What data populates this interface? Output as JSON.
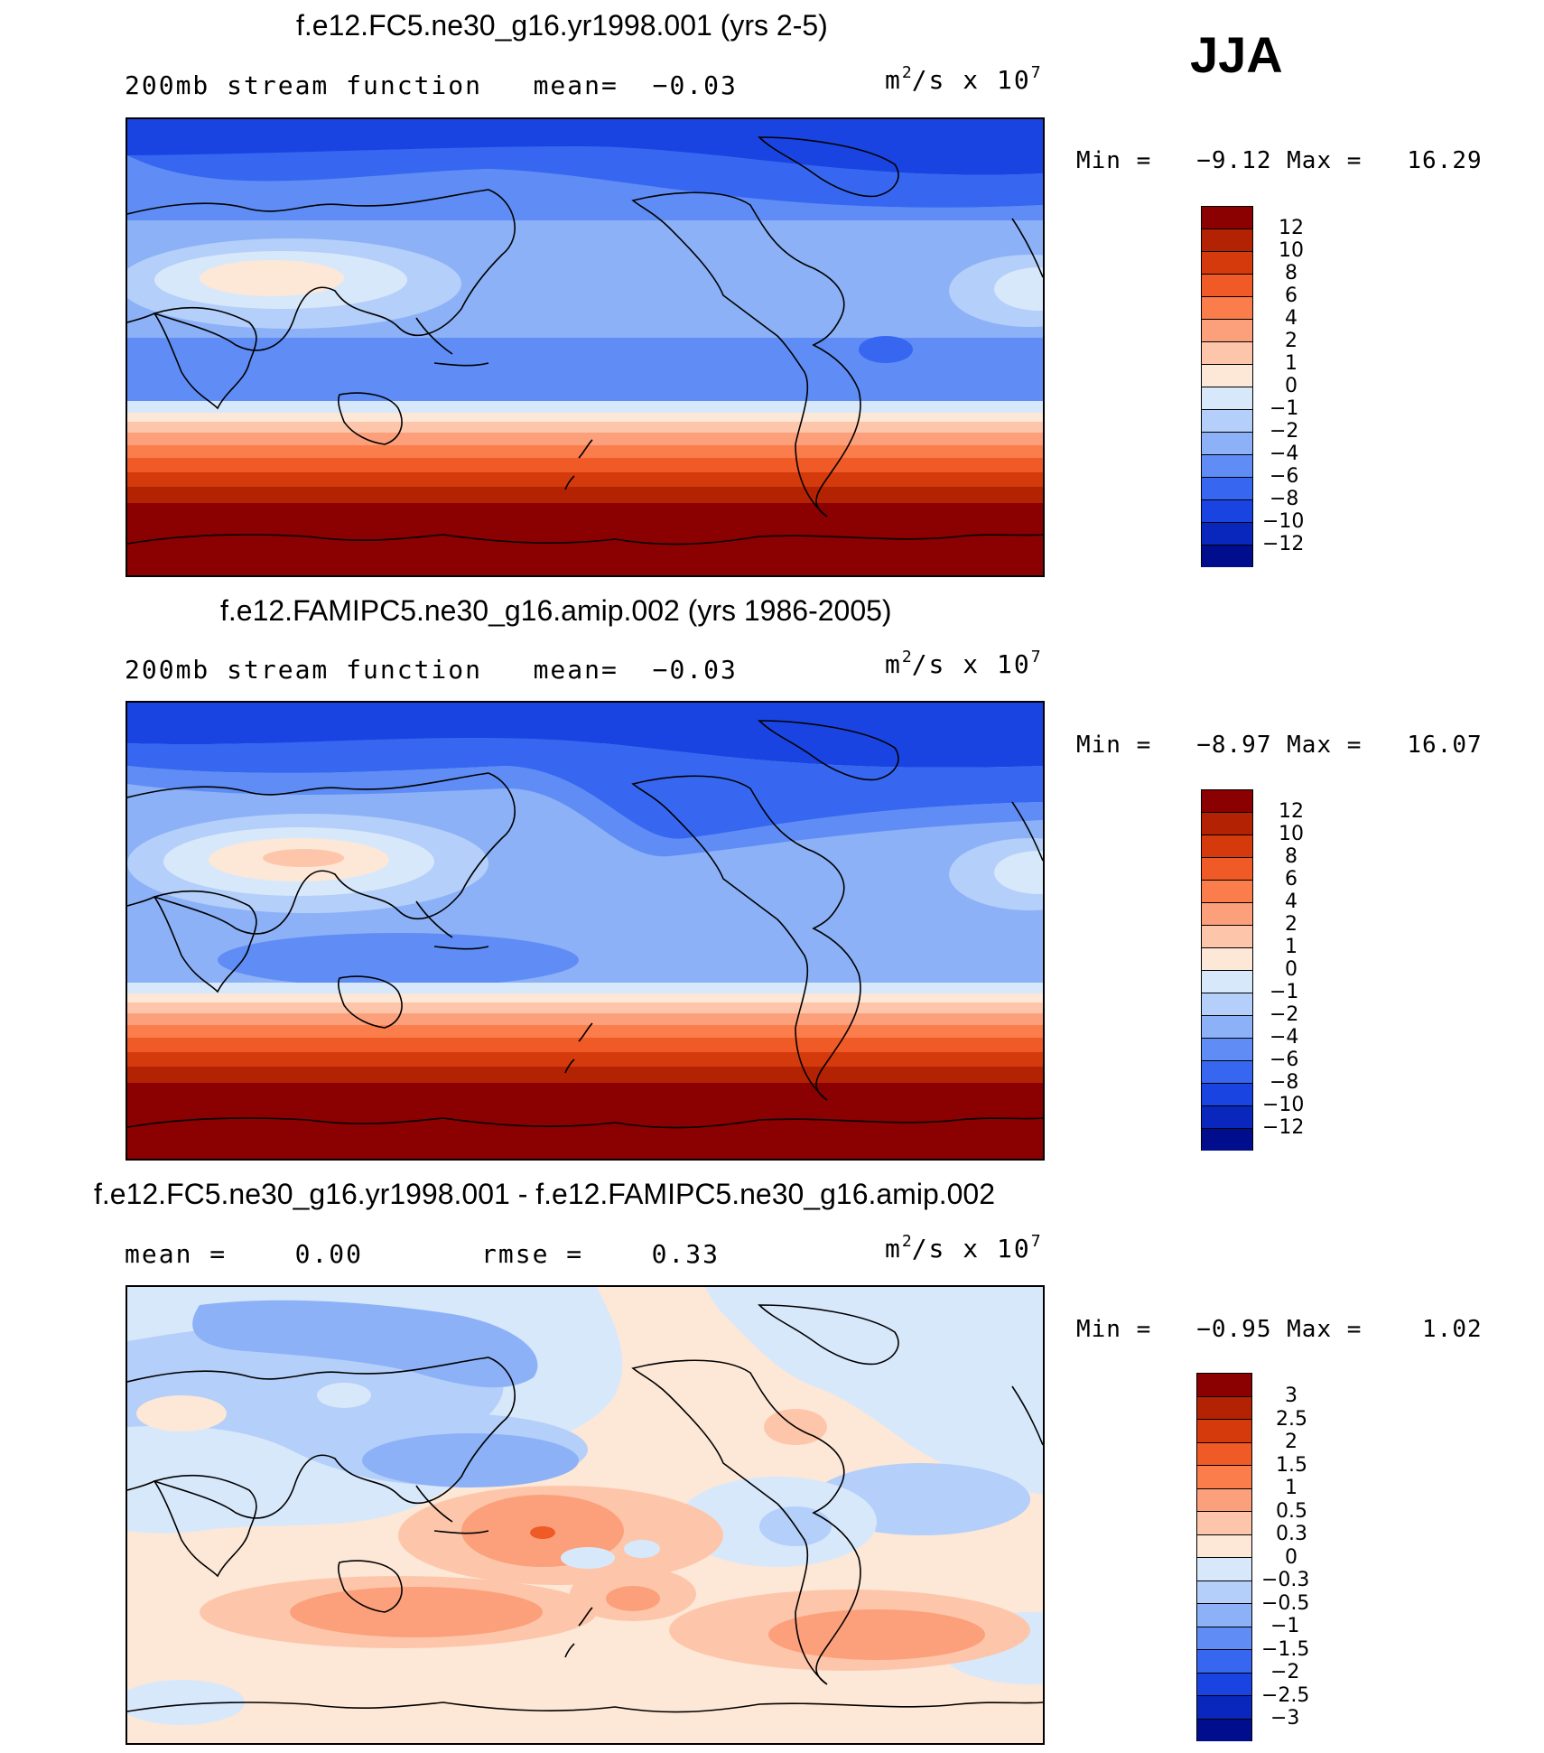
{
  "season": "JJA",
  "panels": [
    {
      "title": "f.e12.FC5.ne30_g16.yr1998.001 (yrs 2-5)",
      "left_label": "200mb stream function   mean=  −0.03",
      "units_base": "m",
      "units_exp": "2",
      "units_mid": "/s x 10",
      "units_pow": "7",
      "minmax": "Min =   −9.12 Max =   16.29",
      "colorbar": {
        "colors": [
          "#8b0000",
          "#b22203",
          "#d53a0c",
          "#ef5a27",
          "#fa7d4b",
          "#fca07c",
          "#fdc6aa",
          "#fde7d7",
          "#d8e8fb",
          "#b4cff9",
          "#8cb1f7",
          "#5f8df5",
          "#3767f0",
          "#1a44e1",
          "#0927bd",
          "#000e8e"
        ],
        "labels": [
          "12",
          "10",
          "8",
          "6",
          "4",
          "2",
          "1",
          "0",
          "−1",
          "−2",
          "−4",
          "−6",
          "−8",
          "−10",
          "−12"
        ]
      }
    },
    {
      "title": "f.e12.FAMIPC5.ne30_g16.amip.002 (yrs 1986-2005)",
      "left_label": "200mb stream function   mean=  −0.03",
      "units_base": "m",
      "units_exp": "2",
      "units_mid": "/s x 10",
      "units_pow": "7",
      "minmax": "Min =   −8.97 Max =   16.07",
      "colorbar": {
        "colors": [
          "#8b0000",
          "#b22203",
          "#d53a0c",
          "#ef5a27",
          "#fa7d4b",
          "#fca07c",
          "#fdc6aa",
          "#fde7d7",
          "#d8e8fb",
          "#b4cff9",
          "#8cb1f7",
          "#5f8df5",
          "#3767f0",
          "#1a44e1",
          "#0927bd",
          "#000e8e"
        ],
        "labels": [
          "12",
          "10",
          "8",
          "6",
          "4",
          "2",
          "1",
          "0",
          "−1",
          "−2",
          "−4",
          "−6",
          "−8",
          "−10",
          "−12"
        ]
      }
    },
    {
      "title": "f.e12.FC5.ne30_g16.yr1998.001 - f.e12.FAMIPC5.ne30_g16.amip.002",
      "left_label": "mean =    0.00",
      "mid_label": "rmse =    0.33",
      "units_base": "m",
      "units_exp": "2",
      "units_mid": "/s x 10",
      "units_pow": "7",
      "minmax": "Min =   −0.95 Max =    1.02",
      "colorbar": {
        "colors": [
          "#8b0000",
          "#b22203",
          "#d53a0c",
          "#ef5a27",
          "#fa7d4b",
          "#fca07c",
          "#fdc6aa",
          "#fde7d7",
          "#d8e8fb",
          "#b4cff9",
          "#8cb1f7",
          "#5f8df5",
          "#3767f0",
          "#1a44e1",
          "#0927bd",
          "#000e8e"
        ],
        "labels": [
          "3",
          "2.5",
          "2",
          "1.5",
          "1",
          "0.5",
          "0.3",
          "0",
          "−0.3",
          "−0.5",
          "−1",
          "−1.5",
          "−2",
          "−2.5",
          "−3"
        ]
      }
    }
  ]
}
